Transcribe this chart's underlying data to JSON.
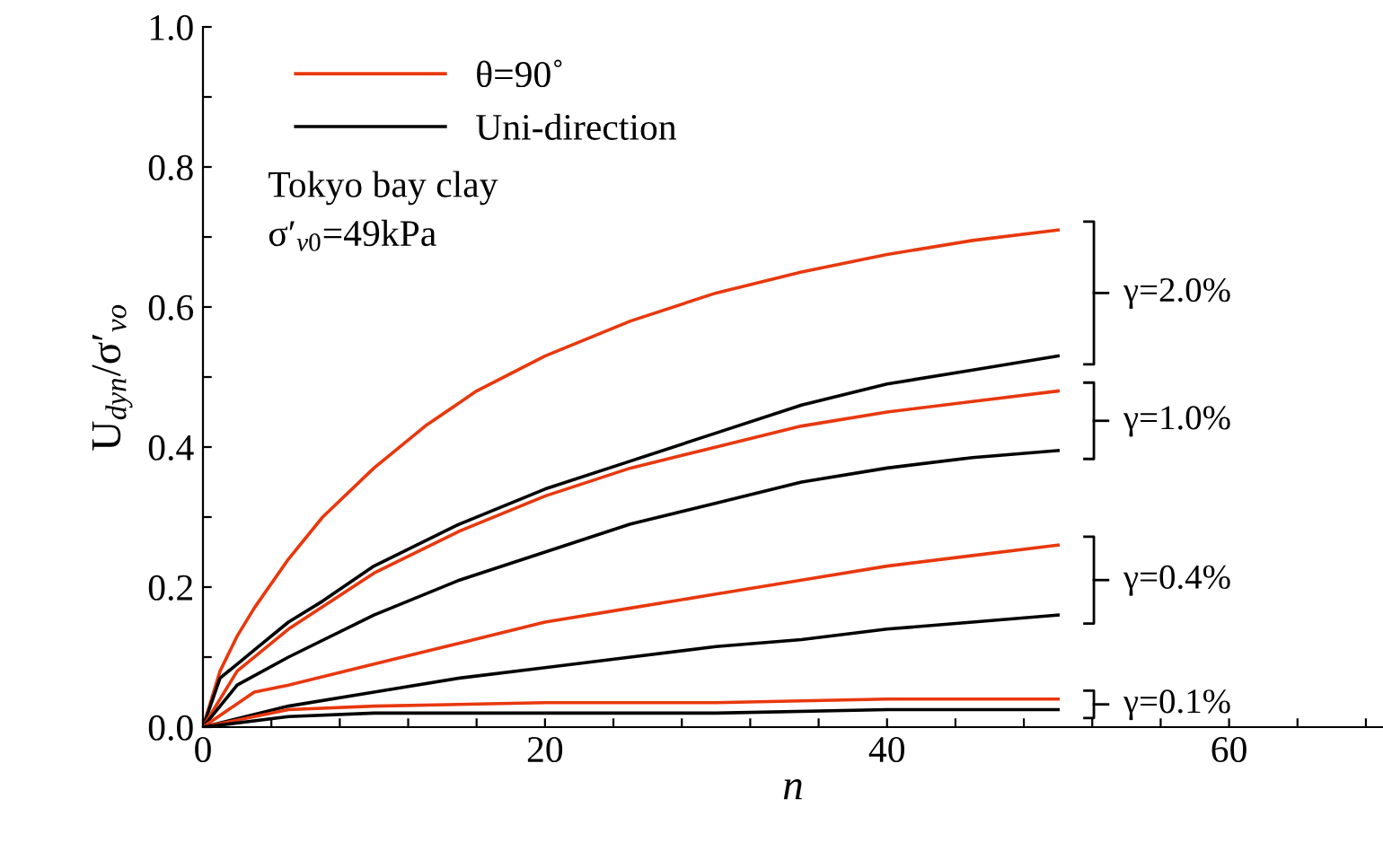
{
  "chart_data": {
    "type": "line",
    "xlabel": "n",
    "ylabel": "U$_{dyn}$/σ′$_{vo}$",
    "xlim": [
      0,
      69
    ],
    "ylim": [
      0,
      1.0
    ],
    "xticks": [
      0,
      {
        "value": 4,
        "label": null
      },
      {
        "value": 8,
        "label": null
      },
      {
        "value": 12,
        "label": null
      },
      {
        "value": 16,
        "label": null
      },
      20,
      {
        "value": 24,
        "label": null
      },
      {
        "value": 28,
        "label": null
      },
      {
        "value": 32,
        "label": null
      },
      {
        "value": 36,
        "label": null
      },
      40,
      {
        "value": 44,
        "label": null
      },
      {
        "value": 48,
        "label": null
      },
      {
        "value": 52,
        "label": null
      },
      {
        "value": 56,
        "label": null
      },
      60,
      {
        "value": 64,
        "label": null
      },
      {
        "value": 68,
        "label": null
      }
    ],
    "yticks": [
      {
        "value": 0,
        "label": "0.0"
      },
      {
        "value": 0.1,
        "label": null
      },
      0.2,
      {
        "value": 0.3,
        "label": null
      },
      0.4,
      {
        "value": 0.5,
        "label": null
      },
      0.6,
      {
        "value": 0.7,
        "label": null
      },
      0.8,
      {
        "value": 0.9,
        "label": null
      },
      {
        "value": 1.0,
        "label": "1.0"
      }
    ],
    "grid": false,
    "legend": "top left",
    "marker": "none",
    "line_style": "solid",
    "series": [
      {
        "name": "θ=90˚",
        "color": "#e8380d",
        "x": [
          0,
          1,
          2,
          3,
          5,
          7,
          10,
          13,
          16,
          20,
          25,
          30,
          35,
          40,
          45,
          50
        ],
        "values": [
          0,
          0.08,
          0.13,
          0.17,
          0.24,
          0.3,
          0.37,
          0.43,
          0.48,
          0.53,
          0.58,
          0.62,
          0.65,
          0.675,
          0.695,
          0.71
        ]
      },
      {
        "name": "Uni-direction",
        "color": "#000000",
        "x": [
          0,
          1,
          2,
          3,
          5,
          7,
          10,
          15,
          20,
          25,
          30,
          35,
          40,
          45,
          50
        ],
        "values": [
          0,
          0.07,
          0.09,
          0.11,
          0.15,
          0.18,
          0.23,
          0.29,
          0.34,
          0.38,
          0.42,
          0.46,
          0.49,
          0.51,
          0.53
        ]
      },
      {
        "color": "#e8380d",
        "x": [
          0,
          2,
          5,
          10,
          15,
          20,
          25,
          30,
          35,
          40,
          45,
          50
        ],
        "values": [
          0,
          0.08,
          0.14,
          0.22,
          0.28,
          0.33,
          0.37,
          0.4,
          0.43,
          0.45,
          0.465,
          0.48
        ]
      },
      {
        "color": "#000000",
        "x": [
          0,
          2,
          5,
          10,
          15,
          20,
          25,
          30,
          35,
          40,
          45,
          50
        ],
        "values": [
          0,
          0.06,
          0.1,
          0.16,
          0.21,
          0.25,
          0.29,
          0.32,
          0.35,
          0.37,
          0.385,
          0.395
        ]
      },
      {
        "color": "#e8380d",
        "x": [
          0,
          3,
          5,
          10,
          15,
          20,
          25,
          30,
          35,
          40,
          45,
          50
        ],
        "values": [
          0,
          0.05,
          0.06,
          0.09,
          0.12,
          0.15,
          0.17,
          0.19,
          0.21,
          0.23,
          0.245,
          0.26
        ]
      },
      {
        "color": "#000000",
        "x": [
          0,
          5,
          10,
          15,
          20,
          25,
          30,
          35,
          40,
          45,
          50
        ],
        "values": [
          0,
          0.03,
          0.05,
          0.07,
          0.085,
          0.1,
          0.115,
          0.125,
          0.14,
          0.15,
          0.16
        ]
      },
      {
        "color": "#e8380d",
        "x": [
          0,
          5,
          10,
          20,
          30,
          40,
          50
        ],
        "values": [
          0,
          0.025,
          0.03,
          0.035,
          0.035,
          0.04,
          0.04
        ]
      },
      {
        "color": "#000000",
        "x": [
          0,
          5,
          10,
          20,
          30,
          40,
          50
        ],
        "values": [
          0,
          0.015,
          0.02,
          0.02,
          0.02,
          0.025,
          0.025
        ]
      }
    ],
    "annotations": [
      "Tokyo bay clay",
      "σ′$_{v0}$=49kPa",
      "γ=2.0%",
      "γ=1.0%",
      "γ=0.4%",
      "γ=0.1%"
    ]
  }
}
